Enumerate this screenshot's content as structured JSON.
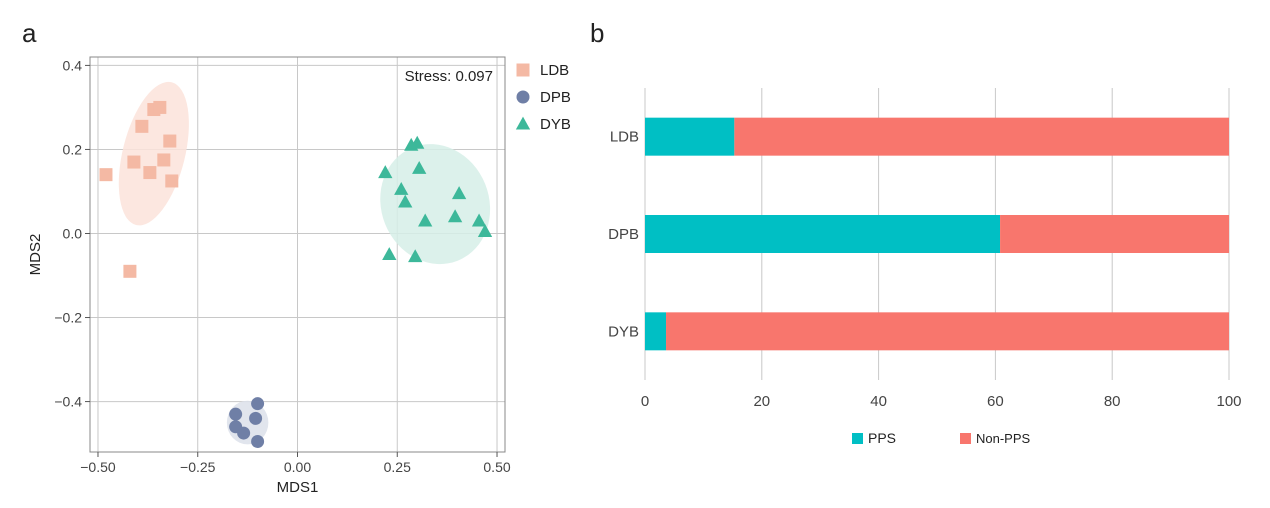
{
  "panels": {
    "a": "a",
    "b": "b"
  },
  "colors": {
    "ldb": "#F4B9A4",
    "dpb": "#6F7FA6",
    "dyb": "#3DB89A",
    "ldb_ellipse": "#FBE3DA",
    "dpb_ellipse": "#DCE0EA",
    "dyb_ellipse": "#D6EFE7",
    "pps": "#00BFC4",
    "nonpps": "#F8766D",
    "grid": "#C8C8C8"
  },
  "chart_data": [
    {
      "type": "scatter",
      "xlabel": "MDS1",
      "ylabel": "MDS2",
      "annotation": "Stress: 0.097",
      "xlim": [
        -0.52,
        0.52
      ],
      "ylim": [
        -0.52,
        0.42
      ],
      "xticks": [
        -0.5,
        -0.25,
        0,
        0.25,
        0.5
      ],
      "xtick_labels": [
        "−0.50",
        "−0.25",
        "0.00",
        "0.25",
        "0.50"
      ],
      "yticks": [
        0.4,
        0.2,
        0,
        -0.2,
        -0.4
      ],
      "ytick_labels": [
        "0.4",
        "0.2",
        "0.0",
        "−0.2",
        "−0.4"
      ],
      "legend_position": "right",
      "series": [
        {
          "name": "LDB",
          "marker": "square",
          "points": [
            [
              -0.48,
              0.14
            ],
            [
              -0.42,
              -0.09
            ],
            [
              -0.41,
              0.17
            ],
            [
              -0.39,
              0.255
            ],
            [
              -0.37,
              0.145
            ],
            [
              -0.36,
              0.295
            ],
            [
              -0.345,
              0.3
            ],
            [
              -0.335,
              0.175
            ],
            [
              -0.32,
              0.22
            ],
            [
              -0.315,
              0.125
            ]
          ],
          "ellipse": {
            "cx": -0.36,
            "cy": 0.19,
            "rx": 0.078,
            "ry": 0.175,
            "angle_deg": 14
          }
        },
        {
          "name": "DPB",
          "marker": "circle",
          "points": [
            [
              -0.155,
              -0.43
            ],
            [
              -0.155,
              -0.46
            ],
            [
              -0.135,
              -0.475
            ],
            [
              -0.105,
              -0.44
            ],
            [
              -0.1,
              -0.405
            ],
            [
              -0.1,
              -0.495
            ]
          ],
          "ellipse": {
            "cx": -0.125,
            "cy": -0.45,
            "rx": 0.052,
            "ry": 0.052,
            "angle_deg": 0
          }
        },
        {
          "name": "DYB",
          "marker": "triangle",
          "points": [
            [
              0.22,
              0.145
            ],
            [
              0.23,
              -0.05
            ],
            [
              0.26,
              0.105
            ],
            [
              0.27,
              0.075
            ],
            [
              0.285,
              0.21
            ],
            [
              0.295,
              -0.055
            ],
            [
              0.3,
              0.215
            ],
            [
              0.305,
              0.155
            ],
            [
              0.32,
              0.03
            ],
            [
              0.395,
              0.04
            ],
            [
              0.405,
              0.095
            ],
            [
              0.455,
              0.03
            ],
            [
              0.47,
              0.005
            ]
          ],
          "ellipse": {
            "cx": 0.345,
            "cy": 0.07,
            "rx": 0.135,
            "ry": 0.145,
            "angle_deg": -22
          }
        }
      ]
    },
    {
      "type": "bar",
      "orientation": "horizontal",
      "stacked": true,
      "categories": [
        "LDB",
        "DPB",
        "DYB"
      ],
      "xlim": [
        0,
        100
      ],
      "xticks": [
        0,
        20,
        40,
        60,
        80,
        100
      ],
      "legend_position": "bottom",
      "series": [
        {
          "name": "PPS",
          "values": [
            15.3,
            60.8,
            3.6
          ]
        },
        {
          "name": "Non-PPS",
          "values": [
            84.7,
            39.2,
            96.4
          ]
        }
      ]
    }
  ]
}
